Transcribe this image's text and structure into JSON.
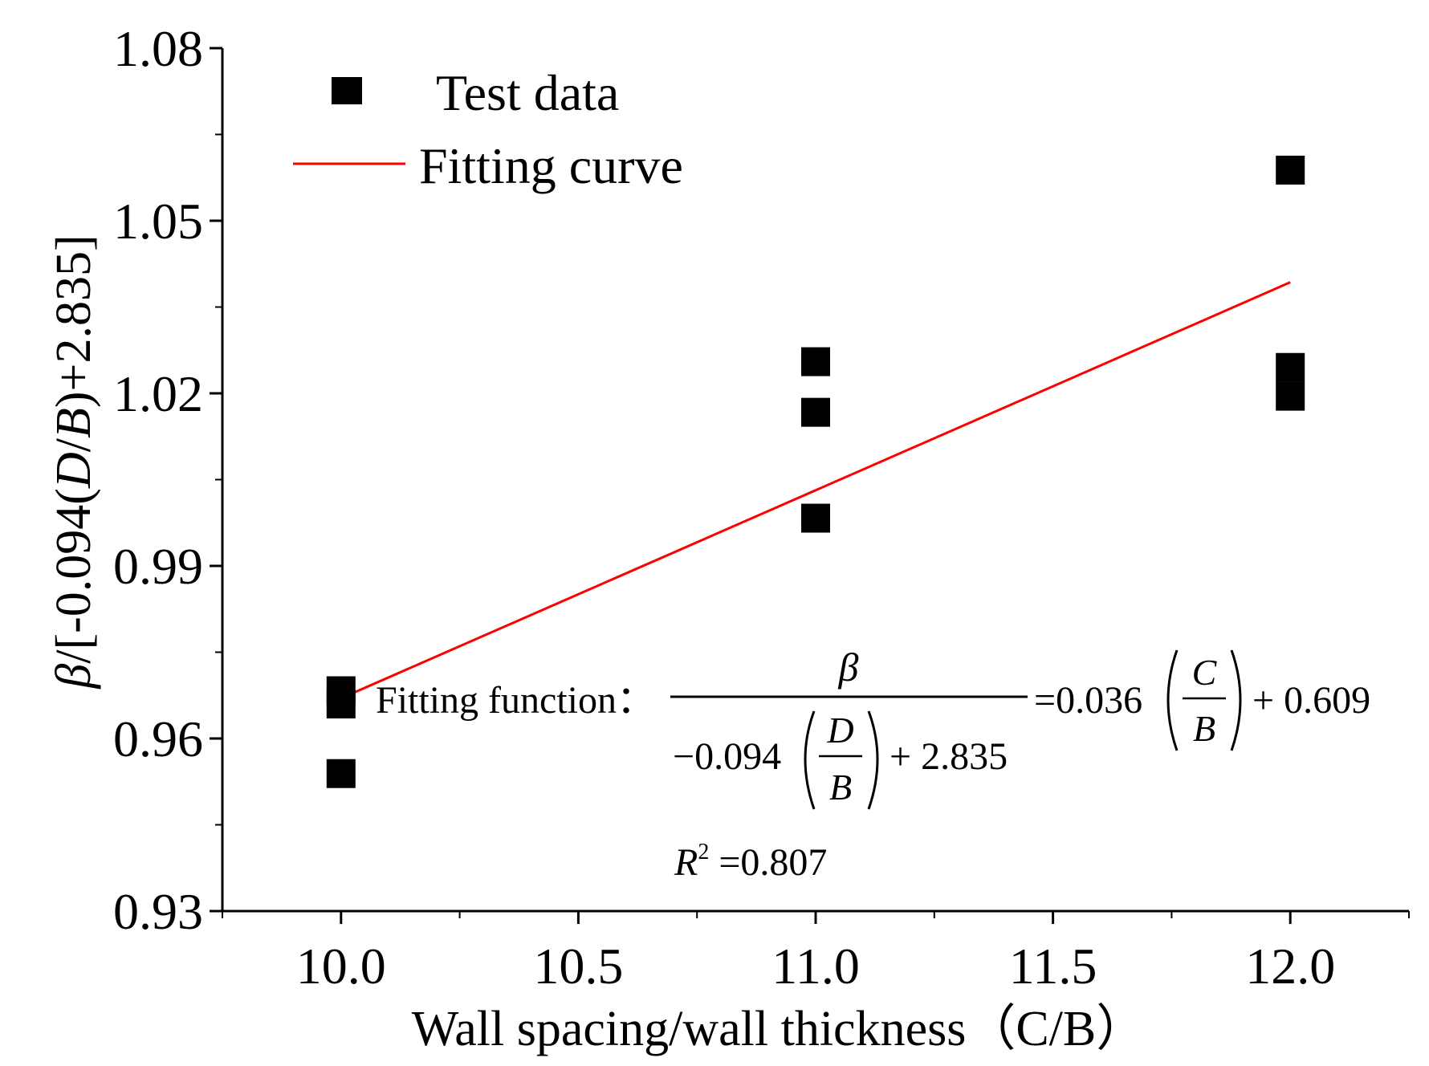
{
  "chart_data": {
    "type": "scatter",
    "title": "",
    "xlabel": "Wall spacing/wall thickness（C/B）",
    "ylabel": {
      "beta": "β",
      "pre": "/[-0.094(",
      "d": "D",
      "slash": "/",
      "b": "B",
      "post": ")+2.835]"
    },
    "xlim": [
      9.75,
      12.25
    ],
    "ylim": [
      0.93,
      1.08
    ],
    "x_ticks": [
      "10.0",
      "10.5",
      "11.0",
      "11.5",
      "12.0"
    ],
    "x_tick_values": [
      10.0,
      10.5,
      11.0,
      11.5,
      12.0
    ],
    "y_ticks": [
      "0.93",
      "0.96",
      "0.99",
      "1.02",
      "1.05",
      "1.08"
    ],
    "y_tick_values": [
      0.93,
      0.96,
      0.99,
      1.02,
      1.05,
      1.08
    ],
    "series": [
      {
        "name": "Test data",
        "kind": "scatter",
        "marker": "square",
        "color": "#000000",
        "points": [
          {
            "x": 10.0,
            "y": 0.9683
          },
          {
            "x": 10.0,
            "y": 0.966
          },
          {
            "x": 10.0,
            "y": 0.9539
          },
          {
            "x": 11.0,
            "y": 1.0255
          },
          {
            "x": 11.0,
            "y": 1.0167
          },
          {
            "x": 11.0,
            "y": 0.9983
          },
          {
            "x": 12.0,
            "y": 1.0588
          },
          {
            "x": 12.0,
            "y": 1.0245
          },
          {
            "x": 12.0,
            "y": 1.0195
          }
        ]
      },
      {
        "name": "Fitting curve",
        "kind": "line",
        "color": "#ff0000",
        "points": [
          {
            "x": 10.0,
            "y": 0.967
          },
          {
            "x": 12.0,
            "y": 1.0393
          }
        ]
      }
    ],
    "legend_position": "top-left",
    "annotation": {
      "label": "Fitting function：",
      "numerator": "β",
      "den_coef": "−0.094",
      "den_num": "D",
      "den_den": "B",
      "den_const": "+ 2.835",
      "equals": "=0.036",
      "rhs_num": "C",
      "rhs_den": "B",
      "rhs_const": "+ 0.609",
      "r2_symbol": "R",
      "r2_exp": "2",
      "r2_value": " =0.807"
    }
  }
}
